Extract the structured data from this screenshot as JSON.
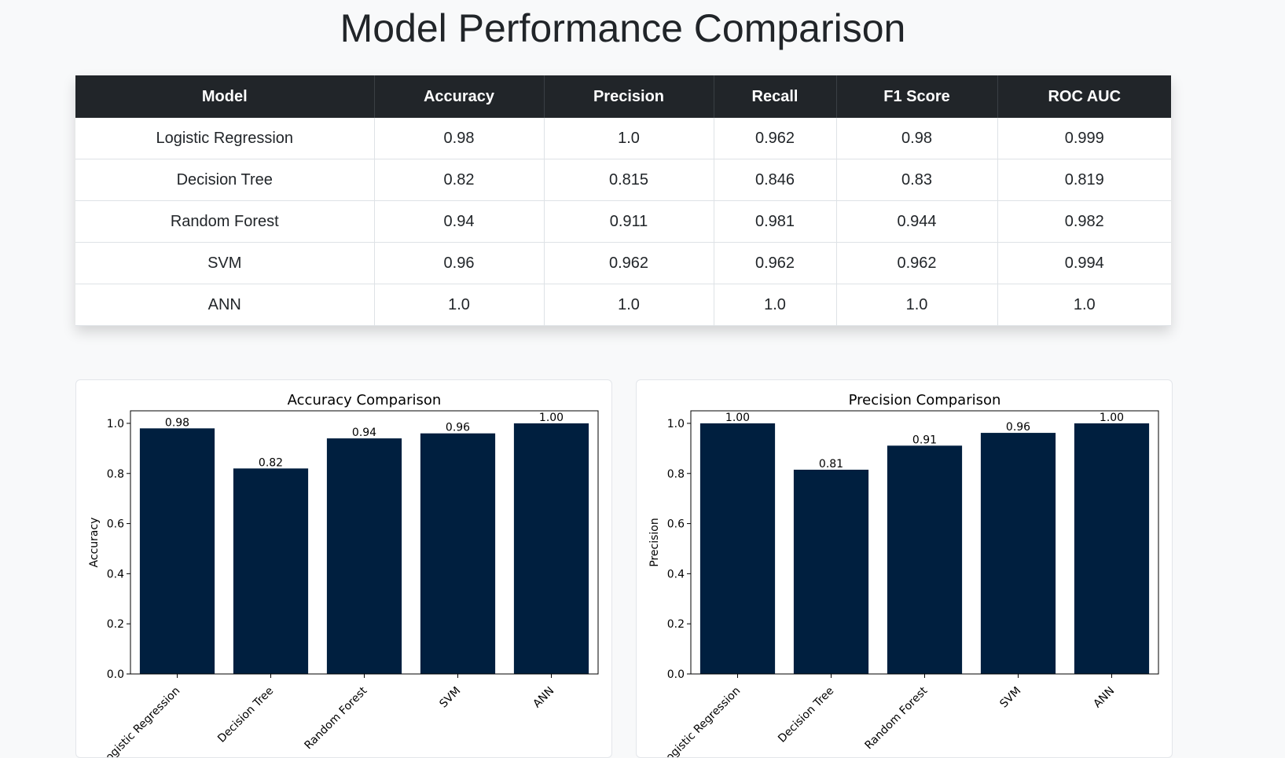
{
  "page": {
    "title": "Model Performance Comparison"
  },
  "table": {
    "headers": [
      "Model",
      "Accuracy",
      "Precision",
      "Recall",
      "F1 Score",
      "ROC AUC"
    ],
    "rows": [
      [
        "Logistic Regression",
        "0.98",
        "1.0",
        "0.962",
        "0.98",
        "0.999"
      ],
      [
        "Decision Tree",
        "0.82",
        "0.815",
        "0.846",
        "0.83",
        "0.819"
      ],
      [
        "Random Forest",
        "0.94",
        "0.911",
        "0.981",
        "0.944",
        "0.982"
      ],
      [
        "SVM",
        "0.96",
        "0.962",
        "0.962",
        "0.962",
        "0.994"
      ],
      [
        "ANN",
        "1.0",
        "1.0",
        "1.0",
        "1.0",
        "1.0"
      ]
    ]
  },
  "chart_data": [
    {
      "type": "bar",
      "title": "Accuracy Comparison",
      "xlabel": "",
      "ylabel": "Accuracy",
      "categories": [
        "Logistic Regression",
        "Decision Tree",
        "Random Forest",
        "SVM",
        "ANN"
      ],
      "values": [
        0.98,
        0.82,
        0.94,
        0.96,
        1.0
      ],
      "bar_labels": [
        "0.98",
        "0.82",
        "0.94",
        "0.96",
        "1.00"
      ],
      "ylim": [
        0,
        1.05
      ],
      "yticks": [
        "0.0",
        "0.2",
        "0.4",
        "0.6",
        "0.8",
        "1.0"
      ],
      "grid": false,
      "bar_color": "#001f3f"
    },
    {
      "type": "bar",
      "title": "Precision Comparison",
      "xlabel": "",
      "ylabel": "Precision",
      "categories": [
        "Logistic Regression",
        "Decision Tree",
        "Random Forest",
        "SVM",
        "ANN"
      ],
      "values": [
        1.0,
        0.815,
        0.911,
        0.962,
        1.0
      ],
      "bar_labels": [
        "1.00",
        "0.81",
        "0.91",
        "0.96",
        "1.00"
      ],
      "ylim": [
        0,
        1.05
      ],
      "yticks": [
        "0.0",
        "0.2",
        "0.4",
        "0.6",
        "0.8",
        "1.0"
      ],
      "grid": false,
      "bar_color": "#001f3f"
    }
  ]
}
